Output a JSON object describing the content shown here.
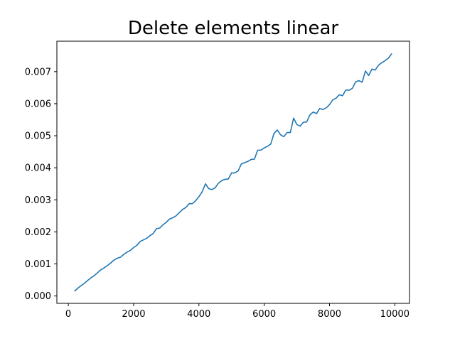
{
  "chart_data": {
    "type": "line",
    "title": "Delete elements linear",
    "xlabel": "",
    "ylabel": "",
    "xlim": [
      -350,
      10450
    ],
    "ylim": [
      -0.00023,
      0.00795
    ],
    "xticks": [
      0,
      2000,
      4000,
      6000,
      8000,
      10000
    ],
    "xtick_labels": [
      "0",
      "2000",
      "4000",
      "6000",
      "8000",
      "10000"
    ],
    "yticks": [
      0.0,
      0.001,
      0.002,
      0.003,
      0.004,
      0.005,
      0.006,
      0.007
    ],
    "ytick_labels": [
      "0.000",
      "0.001",
      "0.002",
      "0.003",
      "0.004",
      "0.005",
      "0.006",
      "0.007"
    ],
    "grid": false,
    "legend": "none",
    "series": [
      {
        "color": "#1f77b4",
        "x": [
          200,
          300,
          400,
          500,
          600,
          700,
          800,
          900,
          1000,
          1100,
          1200,
          1300,
          1400,
          1500,
          1600,
          1700,
          1800,
          1900,
          2000,
          2100,
          2200,
          2300,
          2400,
          2500,
          2600,
          2700,
          2800,
          2900,
          3000,
          3100,
          3200,
          3300,
          3400,
          3500,
          3600,
          3700,
          3800,
          3900,
          4000,
          4100,
          4200,
          4300,
          4400,
          4500,
          4600,
          4700,
          4800,
          4900,
          5000,
          5100,
          5200,
          5300,
          5400,
          5500,
          5600,
          5700,
          5800,
          5900,
          6000,
          6100,
          6200,
          6300,
          6400,
          6500,
          6600,
          6700,
          6800,
          6900,
          7000,
          7100,
          7200,
          7300,
          7400,
          7500,
          7600,
          7700,
          7800,
          7900,
          8000,
          8100,
          8200,
          8300,
          8400,
          8500,
          8600,
          8700,
          8800,
          8900,
          9000,
          9100,
          9200,
          9300,
          9400,
          9500,
          9600,
          9700,
          9800,
          9900
        ],
        "y": [
          0.00016,
          0.00025,
          0.00033,
          0.0004,
          0.00049,
          0.00057,
          0.00064,
          0.00073,
          0.00082,
          0.00088,
          0.00095,
          0.00103,
          0.00112,
          0.00118,
          0.00121,
          0.0013,
          0.00137,
          0.00142,
          0.00151,
          0.00158,
          0.0017,
          0.00175,
          0.0018,
          0.00188,
          0.00195,
          0.0021,
          0.00212,
          0.00222,
          0.0023,
          0.0024,
          0.00244,
          0.0025,
          0.0026,
          0.0027,
          0.00276,
          0.00288,
          0.00288,
          0.00297,
          0.0031,
          0.00325,
          0.0035,
          0.00335,
          0.00332,
          0.00338,
          0.00352,
          0.0036,
          0.00364,
          0.00365,
          0.00384,
          0.00384,
          0.0039,
          0.00412,
          0.00416,
          0.0042,
          0.00426,
          0.00427,
          0.00455,
          0.00455,
          0.00462,
          0.00467,
          0.00474,
          0.00507,
          0.00518,
          0.00503,
          0.00497,
          0.0051,
          0.0051,
          0.00555,
          0.00535,
          0.0053,
          0.00542,
          0.00543,
          0.00565,
          0.00574,
          0.00569,
          0.00585,
          0.00582,
          0.00587,
          0.00597,
          0.00612,
          0.00617,
          0.00628,
          0.00625,
          0.00643,
          0.00642,
          0.00648,
          0.00668,
          0.00672,
          0.00667,
          0.00702,
          0.00688,
          0.00708,
          0.00705,
          0.0072,
          0.00728,
          0.00734,
          0.00742,
          0.00755
        ]
      }
    ]
  }
}
